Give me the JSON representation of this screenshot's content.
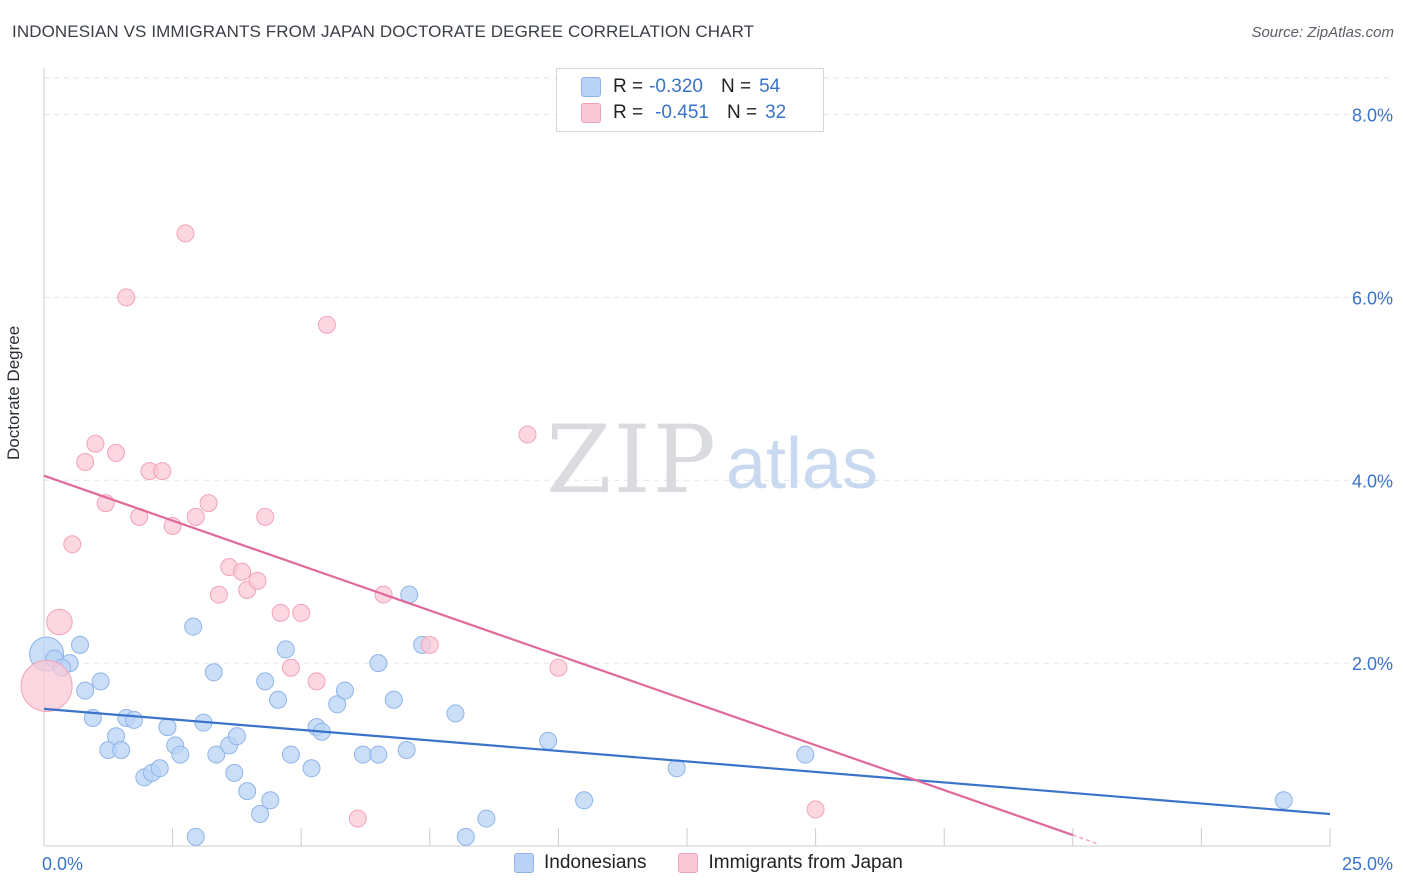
{
  "header": {
    "title": "INDONESIAN VS IMMIGRANTS FROM JAPAN DOCTORATE DEGREE CORRELATION CHART",
    "source": "Source: ZipAtlas.com"
  },
  "watermark": {
    "zip": "ZIP",
    "atlas": "atlas"
  },
  "legend": {
    "r_label": "R =",
    "n_label": "N =",
    "rows": [
      {
        "r": "-0.320",
        "n": "54",
        "fill": "#b9d3f5",
        "stroke": "#8fb4e8"
      },
      {
        "r": "-0.451",
        "n": "32",
        "fill": "#fbc8d6",
        "stroke": "#f2a3b8"
      }
    ]
  },
  "bottom_legend": [
    {
      "label": "Indonesians",
      "fill": "#b9d3f5",
      "stroke": "#8fb4e8"
    },
    {
      "label": "Immigrants from Japan",
      "fill": "#fbc8d6",
      "stroke": "#f2a3b8"
    }
  ],
  "chart_data": {
    "type": "scatter",
    "xlabel": "",
    "ylabel": "Doctorate Degree",
    "xlim": [
      0,
      25
    ],
    "ylim": [
      0,
      8.4
    ],
    "x_tick_labels": [
      {
        "value": 0,
        "label": "0.0%"
      },
      {
        "value": 25,
        "label": "25.0%"
      }
    ],
    "y_ticks": [
      {
        "value": 2,
        "label": "2.0%"
      },
      {
        "value": 4,
        "label": "4.0%"
      },
      {
        "value": 6,
        "label": "6.0%"
      },
      {
        "value": 8,
        "label": "8.0%"
      }
    ],
    "x_minor_ticks": [
      0,
      2.5,
      5,
      7.5,
      10,
      12.5,
      15,
      17.5,
      20,
      22.5,
      25
    ],
    "grid": true,
    "series": [
      {
        "name": "Indonesians",
        "color": "#3a73c9",
        "fill": "#b9d3f5",
        "points": [
          [
            0.05,
            2.1,
            2
          ],
          [
            0.2,
            2.05,
            1
          ],
          [
            0.5,
            2.0,
            1
          ],
          [
            0.35,
            1.95,
            1
          ],
          [
            0.7,
            2.2,
            1
          ],
          [
            0.8,
            1.7,
            1
          ],
          [
            1.1,
            1.8,
            1
          ],
          [
            0.95,
            1.4,
            1
          ],
          [
            1.25,
            1.05,
            1
          ],
          [
            1.4,
            1.2,
            1
          ],
          [
            1.5,
            1.05,
            1
          ],
          [
            1.6,
            1.4,
            1
          ],
          [
            1.75,
            1.38,
            1
          ],
          [
            1.95,
            0.75,
            1
          ],
          [
            2.1,
            0.8,
            1
          ],
          [
            2.25,
            0.85,
            1
          ],
          [
            2.4,
            1.3,
            1
          ],
          [
            2.55,
            1.1,
            1
          ],
          [
            2.65,
            1.0,
            1
          ],
          [
            2.9,
            2.4,
            1
          ],
          [
            2.95,
            0.1,
            1
          ],
          [
            3.1,
            1.35,
            1
          ],
          [
            3.3,
            1.9,
            1
          ],
          [
            3.35,
            1.0,
            1
          ],
          [
            3.6,
            1.1,
            1
          ],
          [
            3.7,
            0.8,
            1
          ],
          [
            3.75,
            1.2,
            1
          ],
          [
            3.95,
            0.6,
            1
          ],
          [
            4.2,
            0.35,
            1
          ],
          [
            4.3,
            1.8,
            1
          ],
          [
            4.4,
            0.5,
            1
          ],
          [
            4.55,
            1.6,
            1
          ],
          [
            4.7,
            2.15,
            1
          ],
          [
            4.8,
            1.0,
            1
          ],
          [
            5.2,
            0.85,
            1
          ],
          [
            5.3,
            1.3,
            1
          ],
          [
            5.4,
            1.25,
            1
          ],
          [
            5.7,
            1.55,
            1
          ],
          [
            5.85,
            1.7,
            1
          ],
          [
            6.2,
            1.0,
            1
          ],
          [
            6.5,
            1.0,
            1
          ],
          [
            6.5,
            2.0,
            1
          ],
          [
            6.8,
            1.6,
            1
          ],
          [
            7.05,
            1.05,
            1
          ],
          [
            7.1,
            2.75,
            1
          ],
          [
            7.35,
            2.2,
            1
          ],
          [
            8.0,
            1.45,
            1
          ],
          [
            8.2,
            0.1,
            1
          ],
          [
            8.6,
            0.3,
            1
          ],
          [
            9.8,
            1.15,
            1
          ],
          [
            10.5,
            0.5,
            1
          ],
          [
            12.3,
            0.85,
            1
          ],
          [
            14.8,
            1.0,
            1
          ],
          [
            24.1,
            0.5,
            1
          ]
        ],
        "trend": {
          "x": [
            0,
            25
          ],
          "y": [
            1.5,
            0.35
          ]
        }
      },
      {
        "name": "Immigrants from Japan",
        "color": "#e0699a",
        "fill": "#fbc8d6",
        "points": [
          [
            0.05,
            1.75,
            3
          ],
          [
            0.3,
            2.45,
            1.5
          ],
          [
            0.55,
            3.3,
            1
          ],
          [
            0.8,
            4.2,
            1
          ],
          [
            1.0,
            4.4,
            1
          ],
          [
            1.2,
            3.75,
            1
          ],
          [
            1.4,
            4.3,
            1
          ],
          [
            1.6,
            6.0,
            1
          ],
          [
            1.85,
            3.6,
            1
          ],
          [
            2.05,
            4.1,
            1
          ],
          [
            2.3,
            4.1,
            1
          ],
          [
            2.5,
            3.5,
            1
          ],
          [
            2.75,
            6.7,
            1
          ],
          [
            2.95,
            3.6,
            1
          ],
          [
            3.2,
            3.75,
            1
          ],
          [
            3.4,
            2.75,
            1
          ],
          [
            3.6,
            3.05,
            1
          ],
          [
            3.85,
            3.0,
            1
          ],
          [
            3.95,
            2.8,
            1
          ],
          [
            4.15,
            2.9,
            1
          ],
          [
            4.3,
            3.6,
            1
          ],
          [
            4.6,
            2.55,
            1
          ],
          [
            4.8,
            1.95,
            1
          ],
          [
            5.0,
            2.55,
            1
          ],
          [
            5.3,
            1.8,
            1
          ],
          [
            5.5,
            5.7,
            1
          ],
          [
            6.1,
            0.3,
            1
          ],
          [
            6.6,
            2.75,
            1
          ],
          [
            7.5,
            2.2,
            1
          ],
          [
            9.4,
            4.5,
            1
          ],
          [
            10.0,
            1.95,
            1
          ],
          [
            15.0,
            0.4,
            1
          ]
        ],
        "trend": {
          "x": [
            0,
            20
          ],
          "y": [
            4.05,
            0.12
          ]
        },
        "trend_dashed": {
          "x": [
            20,
            20.5
          ],
          "y": [
            0.12,
            0.02
          ]
        }
      }
    ]
  }
}
